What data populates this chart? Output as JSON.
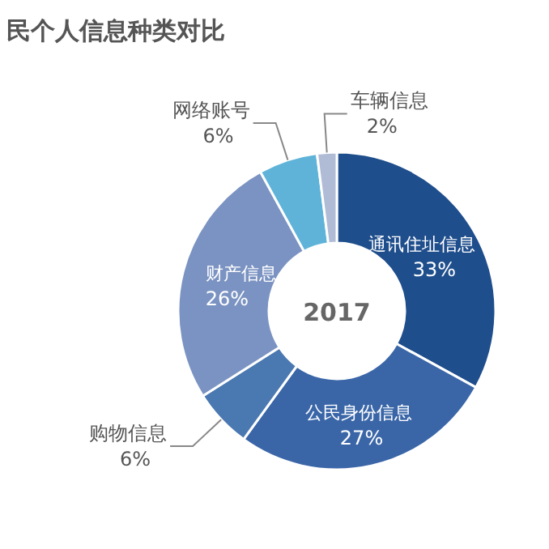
{
  "chart_data": {
    "type": "donut",
    "title": "民个人信息种类对比",
    "annotations": [
      "2017"
    ],
    "categories": [
      "通讯住址信息",
      "公民身份信息",
      "购物信息",
      "财产信息",
      "网络账号",
      "车辆信息"
    ],
    "values": [
      33,
      27,
      6,
      26,
      6,
      2
    ],
    "colors": [
      "#1f4e8c",
      "#3a66a8",
      "#4a78b0",
      "#7b93c2",
      "#5fb3d9",
      "#b0bcd6"
    ],
    "value_labels": [
      "33%",
      "27%",
      "6%",
      "26%",
      "6%",
      "2%"
    ]
  }
}
